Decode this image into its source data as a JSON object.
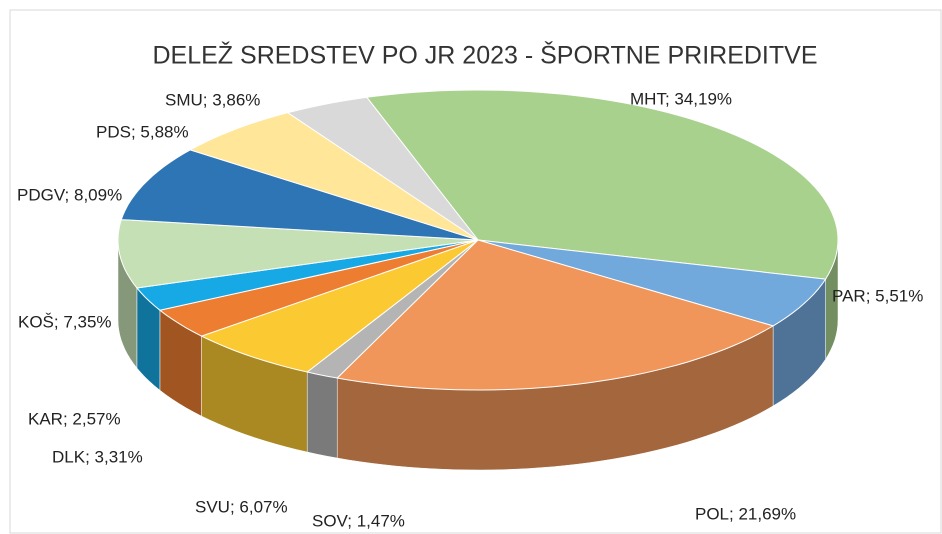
{
  "chart_data": {
    "type": "pie3d",
    "title": "DELEŽ SREDSTEV PO JR 2023 - ŠPORTNE PRIREDITVE",
    "values": [
      34.19,
      5.51,
      21.69,
      1.47,
      6.07,
      3.31,
      2.57,
      7.35,
      8.09,
      5.88,
      3.86
    ],
    "value_labels": [
      "MHT; 34,19%",
      "PAR; 5,51%",
      "POL; 21,69%",
      "SOV; 1,47%",
      "SVU; 6,07%",
      "DLK; 3,31%",
      "KAR; 2,57%",
      "KOŠ; 7,35%",
      "PDGV; 8,09%",
      "PDS; 5,88%",
      "SMU; 3,86%"
    ],
    "colors": [
      "#a9d18e",
      "#72a9dc",
      "#f0965a",
      "#b4b4b4",
      "#fbc932",
      "#ed7d31",
      "#17a9e6",
      "#c5e0b4",
      "#2e75b6",
      "#ffe699",
      "#d9d9d9"
    ]
  }
}
